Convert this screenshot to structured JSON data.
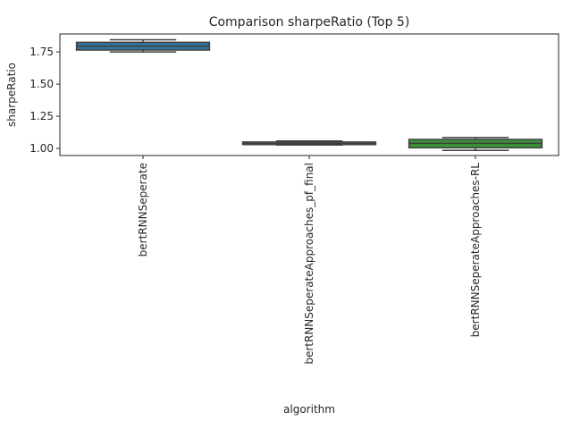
{
  "chart_data": {
    "type": "box",
    "title": "Comparison sharpeRatio (Top 5)",
    "xlabel": "algorithm",
    "ylabel": "sharpeRatio",
    "ylim": [
      0.945,
      1.89
    ],
    "y_ticks": [
      "1.00",
      "1.25",
      "1.50",
      "1.75"
    ],
    "y_tick_values": [
      1.0,
      1.25,
      1.5,
      1.75
    ],
    "grid": false,
    "categories": [
      "bertRNNSeperate",
      "bertRNNSeperateApproaches_pf_final",
      "bertRNNSeperateApproaches-RL"
    ],
    "boxes": [
      {
        "category": "bertRNNSeperate",
        "min": 1.75,
        "q1": 1.765,
        "median": 1.795,
        "q3": 1.825,
        "max": 1.845,
        "color": "#3274a1"
      },
      {
        "category": "bertRNNSeperateApproaches_pf_final",
        "min": 1.027,
        "q1": 1.03,
        "median": 1.04,
        "q3": 1.05,
        "max": 1.058,
        "color": "#e1812c"
      },
      {
        "category": "bertRNNSeperateApproaches-RL",
        "min": 0.985,
        "q1": 1.005,
        "median": 1.04,
        "q3": 1.07,
        "max": 1.085,
        "color": "#3a923a"
      }
    ]
  }
}
